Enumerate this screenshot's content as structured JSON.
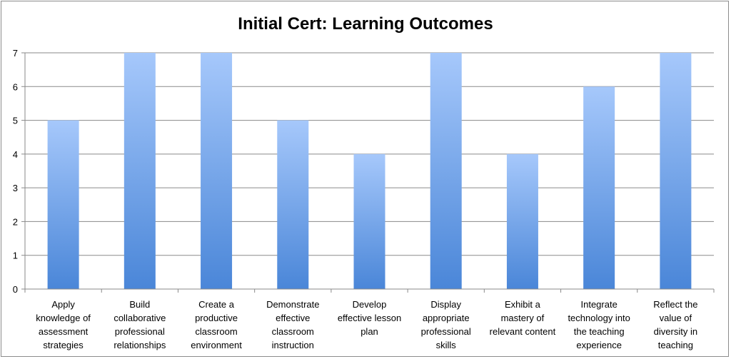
{
  "chart_data": {
    "type": "bar",
    "title": "Initial Cert: Learning Outcomes",
    "xlabel": "",
    "ylabel": "",
    "ylim": [
      0,
      7
    ],
    "yticks": [
      0,
      1,
      2,
      3,
      4,
      5,
      6,
      7
    ],
    "grid": true,
    "legend": "none",
    "bar_color_top": "#a6c8fb",
    "bar_color_bottom": "#4a86d8",
    "categories": [
      [
        "Apply",
        "knowledge of",
        "assessment",
        "strategies"
      ],
      [
        "Build",
        "collaborative",
        "professional",
        "relationships"
      ],
      [
        "Create a",
        "productive",
        "classroom",
        "environment"
      ],
      [
        "Demonstrate",
        "effective",
        "classroom",
        "instruction"
      ],
      [
        "Develop",
        "effective lesson",
        "plan"
      ],
      [
        "Display",
        "appropriate",
        "professional",
        "skills"
      ],
      [
        "Exhibit a",
        "mastery of",
        "relevant content"
      ],
      [
        "Integrate",
        "technology into",
        "the teaching",
        "experience"
      ],
      [
        "Reflect the",
        "value of",
        "diversity in",
        "teaching"
      ]
    ],
    "values": [
      5,
      7,
      7,
      5,
      4,
      7,
      4,
      6,
      7
    ]
  }
}
